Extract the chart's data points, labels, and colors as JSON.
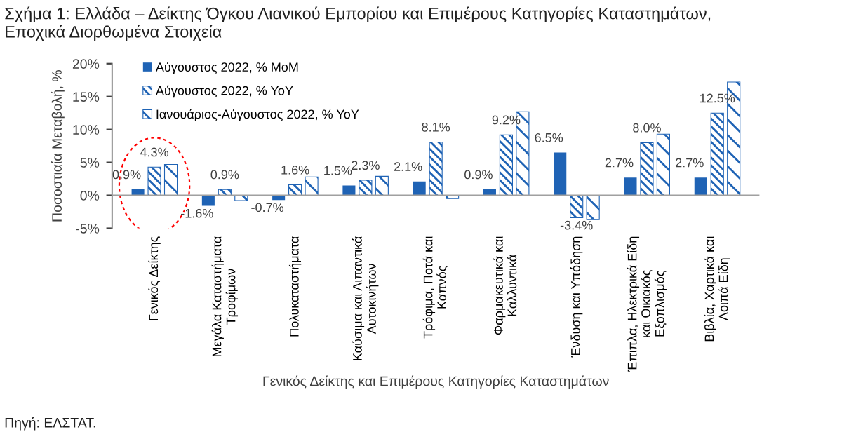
{
  "chart_data": {
    "type": "bar",
    "title": "Σχήμα 1: Ελλάδα – Δείκτης Όγκου Λιανικού Εμπορίου και Επιμέρους Κατηγορίες Καταστημάτων,\nΕποχικά Διορθωμένα Στοιχεία",
    "xlabel": "Γενικός Δείκτης και Επιμέρους Κατηγορίες Καταστημάτων",
    "ylabel": "Ποσοστιαία Μεταβολή, %",
    "categories": [
      "Γενικός Δείκτης",
      "Μεγάλα Καταστήματα\nΤροφίμων",
      "Πολυκαταστήματα",
      "Καύσιμα και Λιπαντικά\nΑυτοκινήτων",
      "Τρόφιμα, Ποτά και\nΚαπνός",
      "Φαρμακευτικά και\nΚαλλυντικά",
      "Ένδυση και Υπόδηση",
      "Έπιπλα, Ηλεκτρικά Είδη\nκαι Οικιακός\nΕξοπλισμός",
      "Βιβλία, Χαρτικά και\nΛοιπά Είδη"
    ],
    "series": [
      {
        "name": "Αύγουστος 2022, % MoM",
        "color": "#1f63b5",
        "values": [
          0.9,
          -1.6,
          -0.7,
          1.5,
          2.1,
          0.9,
          6.5,
          2.7,
          2.7
        ],
        "value_labels": [
          "0.9%",
          "-1.6%",
          "-0.7%",
          "1.5%",
          "2.1%",
          "0.9%",
          "6.5%",
          "2.7%",
          "2.7%"
        ]
      },
      {
        "name": "Αύγουστος 2022, % YoY",
        "color": "#1f63b5",
        "values": [
          4.3,
          0.9,
          1.6,
          2.3,
          8.1,
          9.2,
          -3.4,
          8.0,
          12.5
        ],
        "value_labels": [
          "4.3%",
          "0.9%",
          "1.6%",
          "2.3%",
          "8.1%",
          "9.2%",
          "-3.4%",
          "8.0%",
          "12.5%"
        ]
      },
      {
        "name": "Ιανουάριος-Αύγουστος 2022, % YoY",
        "color": "#1f63b5",
        "values": [
          4.7,
          -0.8,
          2.8,
          2.9,
          -0.5,
          12.7,
          -3.7,
          9.3,
          17.2
        ]
      }
    ],
    "ylim": [
      -5,
      20
    ],
    "yticks": [
      {
        "value": -5,
        "label": "-5%"
      },
      {
        "value": 0,
        "label": "0%"
      },
      {
        "value": 5,
        "label": "5%"
      },
      {
        "value": 10,
        "label": "10%"
      },
      {
        "value": 15,
        "label": "15%"
      },
      {
        "value": 20,
        "label": "20%"
      }
    ],
    "legend": "top left",
    "annotations": [
      "Πηγή: ΕΛΣΤΑΤ."
    ]
  }
}
